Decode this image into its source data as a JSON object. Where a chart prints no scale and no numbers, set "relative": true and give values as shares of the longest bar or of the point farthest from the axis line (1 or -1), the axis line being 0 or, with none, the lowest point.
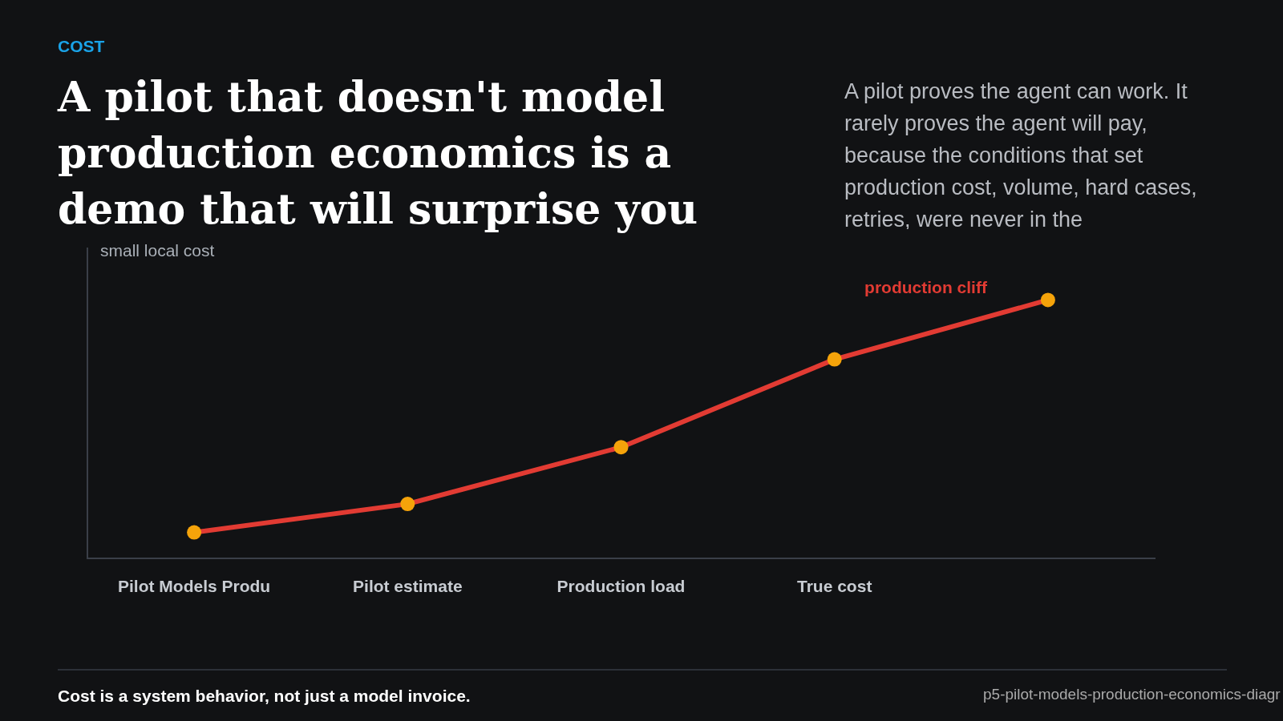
{
  "chart_data": {
    "type": "line",
    "title": "A pilot that doesn't model production economics is a demo that will surprise you",
    "subtitle": "A pilot proves the agent can work. It rarely proves the agent will pay, because the conditions that set production cost, volume, hard cases, retries, were never in the",
    "categories": [
      "Pilot Models Produ",
      "Pilot estimate",
      "Production load",
      "True cost",
      null
    ],
    "series": [
      {
        "color": "#e23b33",
        "colors": [
          "#f5a30a",
          "#f5a30a",
          "#f5a30a",
          "#f5a30a",
          "#f5a30a"
        ],
        "values": [
          0.1,
          0.21,
          0.43,
          0.77,
          1
        ]
      }
    ],
    "relative": true,
    "marker": "circle",
    "annotations": [
      "COST",
      "small local cost",
      "production cliff",
      "Cost is a system behavior, not just a model invoice.",
      "p5-pilot-models-production-economics-diagr"
    ]
  }
}
